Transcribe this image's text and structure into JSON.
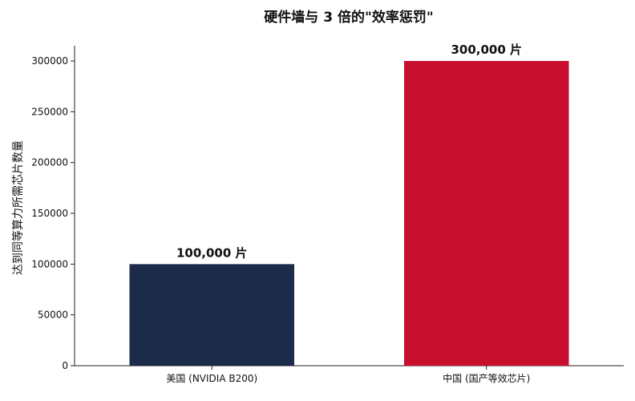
{
  "chart_data": {
    "type": "bar",
    "title": "硬件墙与 3 倍的\"效率惩罚\"",
    "xlabel": "",
    "ylabel": "达到同等算力所需芯片数量",
    "categories": [
      "美国 (NVIDIA B200)",
      "中国 (国产等效芯片)"
    ],
    "values": [
      100000,
      300000
    ],
    "value_labels": [
      "100,000 片",
      "300,000 片"
    ],
    "colors": [
      "#1c2b4a",
      "#c8102e"
    ],
    "ylim": [
      0,
      315000
    ],
    "yticks": [
      0,
      50000,
      100000,
      150000,
      200000,
      250000,
      300000
    ],
    "ytick_labels": [
      "0",
      "50000",
      "100000",
      "150000",
      "200000",
      "250000",
      "300000"
    ],
    "grid": false,
    "legend": "none"
  }
}
